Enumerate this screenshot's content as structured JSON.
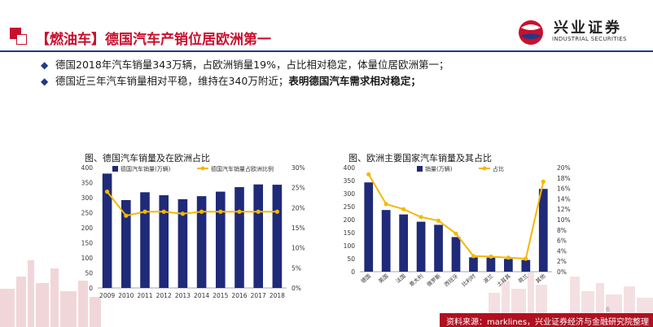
{
  "header": {
    "title": "【燃油车】德国汽车产销位居欧洲第一",
    "logo_text": "兴业证券",
    "logo_sub": "INDUSTRIAL SECURITIES"
  },
  "bullets": [
    {
      "text": "德国2018年汽车销量343万辆，占欧洲销量19%，占比相对稳定，体量位居欧洲第一；",
      "bold": ""
    },
    {
      "text": "德国近三年汽车销量相对平稳，维持在340万附近；",
      "bold": "表明德国汽车需求相对稳定；"
    }
  ],
  "colors": {
    "bar": "#1f2a78",
    "line": "#f5b800",
    "accent": "#c8102e"
  },
  "footer": {
    "source": "资料来源：marklines，兴业证券经济与金融研究院整理",
    "page": "6"
  },
  "chart_data": [
    {
      "type": "bar+line",
      "title": "图、德国汽车销量及在欧洲占比",
      "categories": [
        "2009",
        "2010",
        "2011",
        "2012",
        "2013",
        "2014",
        "2015",
        "2016",
        "2017",
        "2018"
      ],
      "series": [
        {
          "name": "德国汽车销量(万辆)",
          "kind": "bar",
          "axis": "left",
          "values": [
            380,
            292,
            318,
            308,
            295,
            305,
            320,
            335,
            344,
            343
          ]
        },
        {
          "name": "德国汽车销量占欧洲比例",
          "kind": "line",
          "axis": "right",
          "values": [
            0.24,
            0.18,
            0.19,
            0.19,
            0.185,
            0.19,
            0.19,
            0.19,
            0.19,
            0.19
          ]
        }
      ],
      "ylim": [
        0,
        400
      ],
      "yticks": [
        "0",
        "50",
        "100",
        "150",
        "200",
        "250",
        "300",
        "350",
        "400"
      ],
      "y2lim": [
        0,
        0.3
      ],
      "y2ticks": [
        "0%",
        "5%",
        "10%",
        "15%",
        "20%",
        "25%",
        "30%"
      ]
    },
    {
      "type": "bar+line",
      "title": "图、欧洲主要国家汽车销量及其占比",
      "categories": [
        "德国",
        "英国",
        "法国",
        "意大利",
        "俄罗斯",
        "西班牙",
        "比利时",
        "波兰",
        "土耳其",
        "荷兰",
        "其他"
      ],
      "series": [
        {
          "name": "销量(万辆)",
          "kind": "bar",
          "axis": "left",
          "values": [
            343,
            237,
            220,
            192,
            180,
            133,
            55,
            54,
            49,
            45,
            318
          ]
        },
        {
          "name": "占比",
          "kind": "line",
          "axis": "right",
          "values": [
            0.187,
            0.13,
            0.12,
            0.105,
            0.098,
            0.073,
            0.03,
            0.029,
            0.027,
            0.025,
            0.173
          ]
        }
      ],
      "ylim": [
        0,
        400
      ],
      "yticks": [
        "0",
        "50",
        "100",
        "150",
        "200",
        "250",
        "300",
        "350",
        "400"
      ],
      "y2lim": [
        0,
        0.2
      ],
      "y2ticks": [
        "0%",
        "2%",
        "4%",
        "6%",
        "8%",
        "10%",
        "12%",
        "14%",
        "16%",
        "18%",
        "20%"
      ]
    }
  ]
}
